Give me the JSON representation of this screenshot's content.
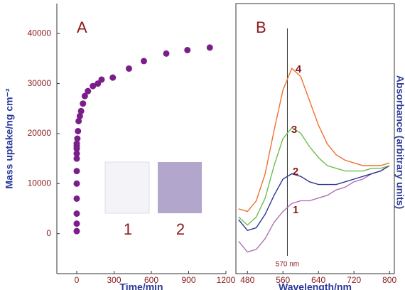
{
  "chart_data": [
    {
      "type": "scatter",
      "panel_label": "A",
      "y_label": "Mass uptake/ng cm⁻²",
      "x_label": "Time/min",
      "x": [
        0,
        0,
        0,
        0,
        0,
        0,
        0,
        0,
        0,
        0,
        0,
        5,
        10,
        15,
        25,
        35,
        50,
        65,
        90,
        130,
        170,
        200,
        290,
        420,
        540,
        720,
        890,
        1070
      ],
      "values": [
        500,
        2000,
        4000,
        7000,
        10000,
        12500,
        15000,
        16000,
        17000,
        17500,
        18000,
        19000,
        20500,
        22500,
        23500,
        24500,
        26000,
        27500,
        28500,
        29500,
        30000,
        30800,
        31200,
        33000,
        34500,
        36000,
        36700,
        37200
      ],
      "color": "#7a1f8a",
      "xlim": [
        -160,
        1200
      ],
      "xticks": [
        0,
        300,
        600,
        900,
        1200
      ],
      "ylim": [
        -8000,
        46000
      ],
      "yticks": [
        0,
        10000,
        20000,
        30000,
        40000
      ],
      "inset_labels": [
        "1",
        "2"
      ]
    },
    {
      "type": "line",
      "panel_label": "B",
      "y_label": "Absorbance (arbitrary units)",
      "x_label": "Wavelength/nm",
      "x": [
        460,
        480,
        500,
        520,
        540,
        560,
        580,
        600,
        620,
        640,
        660,
        680,
        700,
        720,
        740,
        760,
        780,
        800
      ],
      "series": [
        {
          "name": "1",
          "color": "#b070b8",
          "values": [
            0.12,
            0.08,
            0.09,
            0.13,
            0.19,
            0.23,
            0.26,
            0.27,
            0.27,
            0.28,
            0.29,
            0.31,
            0.32,
            0.34,
            0.35,
            0.37,
            0.38,
            0.4
          ]
        },
        {
          "name": "2",
          "color": "#2c3590",
          "values": [
            0.2,
            0.16,
            0.17,
            0.22,
            0.29,
            0.35,
            0.37,
            0.36,
            0.34,
            0.33,
            0.33,
            0.33,
            0.34,
            0.35,
            0.36,
            0.37,
            0.38,
            0.4
          ]
        },
        {
          "name": "3",
          "color": "#6cc04a",
          "values": [
            0.21,
            0.18,
            0.21,
            0.28,
            0.4,
            0.5,
            0.54,
            0.52,
            0.47,
            0.43,
            0.4,
            0.39,
            0.38,
            0.38,
            0.38,
            0.39,
            0.39,
            0.4
          ]
        },
        {
          "name": "4",
          "color": "#f07030",
          "values": [
            0.24,
            0.23,
            0.27,
            0.37,
            0.53,
            0.68,
            0.76,
            0.73,
            0.64,
            0.55,
            0.48,
            0.44,
            0.42,
            0.41,
            0.4,
            0.4,
            0.4,
            0.41
          ]
        }
      ],
      "xlim": [
        454,
        811
      ],
      "xticks": [
        480,
        560,
        640,
        720,
        800
      ],
      "ylim": [
        0,
        1
      ],
      "vline": 570,
      "vline_label": "570 nm"
    }
  ]
}
